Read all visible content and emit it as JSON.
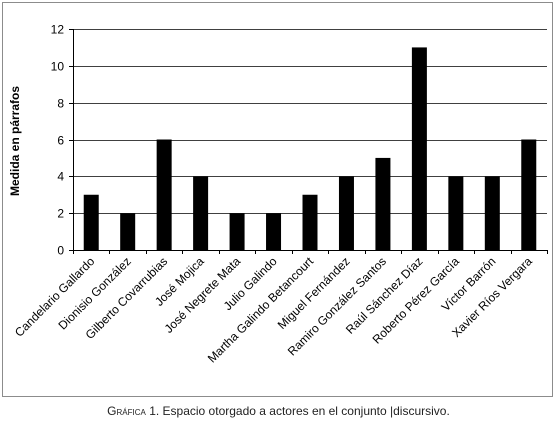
{
  "chart_data": {
    "type": "bar",
    "ylabel": "Medida en párrafos",
    "xlabel": "",
    "ylim": [
      0,
      12
    ],
    "yticks": [
      0,
      2,
      4,
      6,
      8,
      10,
      12
    ],
    "grid": true,
    "legend": "none",
    "bar_color": "#000000",
    "categories": [
      "Candelario Gallardo",
      "Dionisio González",
      "Gilberto Covarrubias",
      "José Mojica",
      "José Negrete Mata",
      "Julio Galindo",
      "Martha Galindo Betancourt",
      "Miguel Fernández",
      "Ramiro González Santos",
      "Raúl Sánchez Díaz",
      "Roberto Pérez García",
      "Víctor Barrón",
      "Xavier Ríos Vergara"
    ],
    "values": [
      3,
      2,
      6,
      4,
      2,
      2,
      3,
      4,
      5,
      11,
      4,
      4,
      6
    ]
  },
  "caption": {
    "prefix": "Gráfica",
    "text": "1. Espacio otorgado a actores en el conjunto |discursivo."
  }
}
